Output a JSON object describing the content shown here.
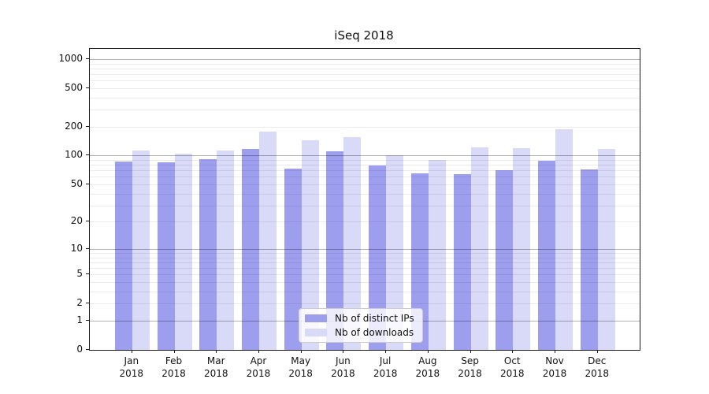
{
  "title": "iSeq 2018",
  "legend": {
    "items": [
      {
        "label": "Nb of distinct IPs",
        "color": "#9e9eef"
      },
      {
        "label": "Nb of downloads",
        "color": "#d9d9f8"
      }
    ]
  },
  "axes": {
    "y_tick_labels": [
      "0",
      "1",
      "2",
      "5",
      "10",
      "20",
      "50",
      "100",
      "200",
      "500",
      "1000"
    ],
    "y_tick_values": [
      0,
      1,
      2,
      5,
      10,
      20,
      50,
      100,
      200,
      500,
      1000
    ],
    "months": [
      "Jan",
      "Feb",
      "Mar",
      "Apr",
      "May",
      "Jun",
      "Jul",
      "Aug",
      "Sep",
      "Oct",
      "Nov",
      "Dec"
    ],
    "year": "2018"
  },
  "chart_data": {
    "type": "bar",
    "title": "iSeq 2018",
    "xlabel": "",
    "ylabel": "",
    "yscale": "log1p",
    "ylim": [
      0,
      1275
    ],
    "grid": true,
    "legend_position": "lower center",
    "categories": [
      "Jan 2018",
      "Feb 2018",
      "Mar 2018",
      "Apr 2018",
      "May 2018",
      "Jun 2018",
      "Jul 2018",
      "Aug 2018",
      "Sep 2018",
      "Oct 2018",
      "Nov 2018",
      "Dec 2018"
    ],
    "series": [
      {
        "name": "Nb of distinct IPs",
        "color": "#9e9eef",
        "values": [
          86,
          85,
          92,
          118,
          73,
          110,
          79,
          65,
          64,
          71,
          89,
          72
        ]
      },
      {
        "name": "Nb of downloads",
        "color": "#d9d9f8",
        "values": [
          114,
          104,
          113,
          178,
          145,
          157,
          100,
          90,
          121,
          119,
          189,
          118
        ]
      }
    ],
    "major_gridline_values": [
      1,
      10,
      100,
      1000
    ],
    "minor_gridline_values": [
      2,
      3,
      4,
      5,
      6,
      7,
      8,
      9,
      20,
      30,
      40,
      50,
      60,
      70,
      80,
      90,
      200,
      300,
      400,
      500,
      600,
      700,
      800,
      900
    ]
  }
}
